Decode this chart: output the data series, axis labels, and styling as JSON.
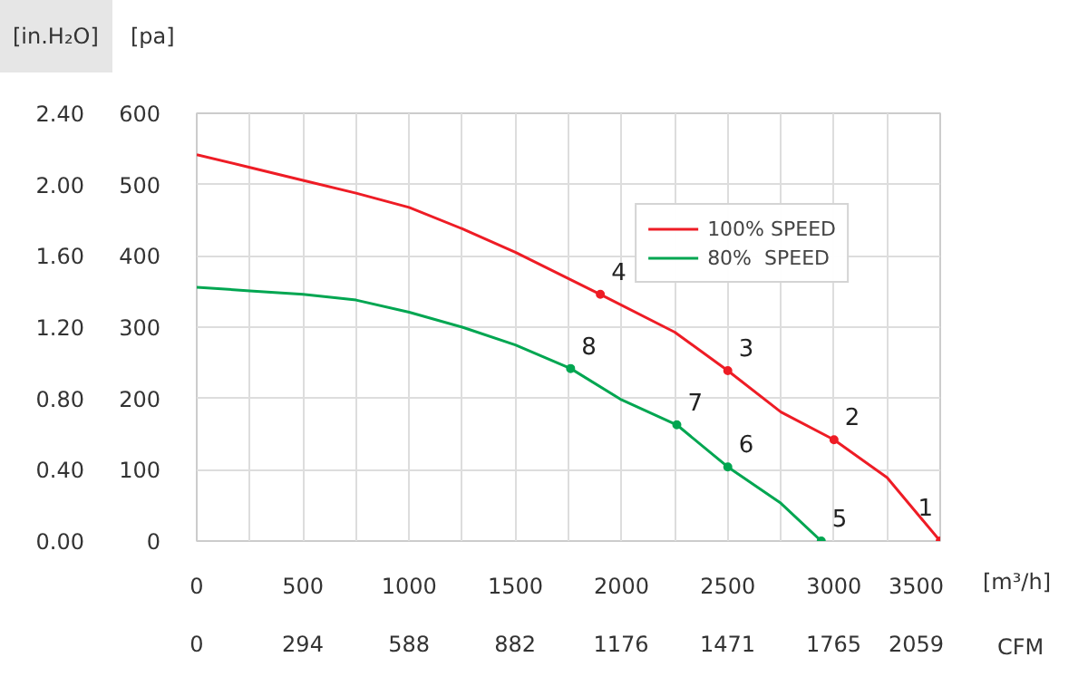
{
  "chart_data": {
    "type": "line",
    "xlabel": "[m³/h]",
    "ylabel": "[pa]",
    "y2label": "[in.H₂O]",
    "x2label": "CFM",
    "xlim": [
      0,
      3500
    ],
    "xticks": [
      0,
      {
        "value": 250,
        "label": null
      },
      500,
      {
        "value": 750,
        "label": null
      },
      1000,
      {
        "value": 1250,
        "label": null
      },
      1500,
      {
        "value": 1750,
        "label": null
      },
      2000,
      {
        "value": 2250,
        "label": null
      },
      2500,
      {
        "value": 2750,
        "label": null
      },
      3000,
      {
        "value": 3250,
        "label": null
      },
      3500
    ],
    "ylim": [
      0,
      600
    ],
    "yticks": [
      0,
      100,
      200,
      300,
      400,
      500,
      600
    ],
    "y2lim": [
      0,
      2.4
    ],
    "y2ticks": [
      {
        "value": 0,
        "label": "0.00"
      },
      {
        "value": 0.4,
        "label": "0.40"
      },
      {
        "value": 0.8,
        "label": "0.80"
      },
      {
        "value": 1.2,
        "label": "1.20"
      },
      {
        "value": 1.6,
        "label": "1.60"
      },
      {
        "value": 2.0,
        "label": "2.00"
      },
      {
        "value": 2.4,
        "label": "2.40"
      }
    ],
    "x2lim": [
      0,
      2060
    ],
    "x2ticks": [
      0,
      294,
      588,
      882,
      1176,
      1471,
      1765,
      2059
    ],
    "grid": true,
    "legend": "top right",
    "line_style": "solid",
    "series": [
      {
        "name": "100% SPEED",
        "color": "#ee1c25",
        "x": [
          0,
          250,
          500,
          750,
          1000,
          1250,
          1500,
          1900,
          2250,
          2500,
          2750,
          3000,
          3250,
          3500
        ],
        "values": [
          542,
          524,
          506,
          488,
          468,
          438,
          405,
          346,
          293,
          239,
          181,
          142,
          89,
          0
        ]
      },
      {
        "name": "80%  SPEED",
        "color": "#00a651",
        "x": [
          0,
          250,
          500,
          750,
          1000,
          1250,
          1500,
          1760,
          2000,
          2260,
          2500,
          2750,
          2940
        ],
        "values": [
          356,
          351,
          346,
          338,
          321,
          300,
          275,
          242,
          198,
          163,
          104,
          53,
          0
        ]
      },
      {
        "type": "scatter",
        "marker": "circle",
        "color": "#ee1c25",
        "x": [
          3500,
          3000,
          2500,
          1900
        ],
        "values": [
          0,
          142,
          239,
          346
        ]
      },
      {
        "type": "scatter",
        "marker": "circle",
        "color": "#00a651",
        "x": [
          2940,
          2500,
          2260,
          1760
        ],
        "values": [
          0,
          104,
          163,
          242
        ]
      }
    ],
    "annotations": [
      {
        "text": "1",
        "x": 3500,
        "y": 0
      },
      {
        "text": "2",
        "x": 3000,
        "y": 142
      },
      {
        "text": "3",
        "x": 2500,
        "y": 239
      },
      {
        "text": "4",
        "x": 1900,
        "y": 346
      },
      {
        "text": "5",
        "x": 2940,
        "y": 0
      },
      {
        "text": "6",
        "x": 2500,
        "y": 104
      },
      {
        "text": "7",
        "x": 2260,
        "y": 163
      },
      {
        "text": "8",
        "x": 1760,
        "y": 242
      }
    ]
  }
}
